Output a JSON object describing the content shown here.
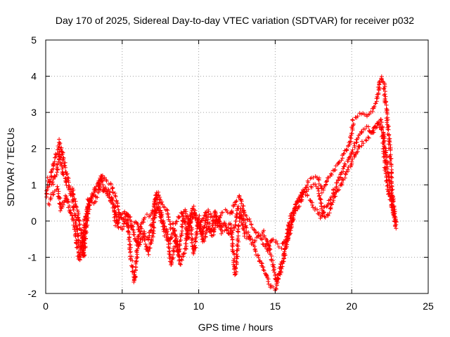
{
  "chart_data": {
    "type": "scatter",
    "title": "Day 170 of 2025, Sidereal Day-to-day VTEC variation (SDTVAR) for receiver p032",
    "xlabel": "GPS time / hours",
    "ylabel": "SDTVAR / TECUs",
    "xlim": [
      0,
      25
    ],
    "ylim": [
      -2,
      5
    ],
    "xticks": [
      0,
      5,
      10,
      15,
      20,
      25
    ],
    "yticks": [
      -2,
      -1,
      0,
      1,
      2,
      3,
      4,
      5
    ],
    "grid": true,
    "marker": "+",
    "series": [
      {
        "name": "SDTVAR",
        "color": "#ff0000",
        "tracks": [
          [
            [
              0.0,
              0.7
            ],
            [
              0.3,
              1.2
            ],
            [
              0.6,
              1.7
            ],
            [
              0.9,
              2.2
            ],
            [
              1.2,
              1.6
            ],
            [
              1.5,
              1.0
            ],
            [
              1.8,
              0.5
            ],
            [
              2.0,
              -0.1
            ],
            [
              2.2,
              -0.6
            ],
            [
              2.4,
              -0.9
            ],
            [
              2.6,
              -0.2
            ],
            [
              2.8,
              0.6
            ],
            [
              3.1,
              0.5
            ],
            [
              3.4,
              0.7
            ],
            [
              3.7,
              1.3
            ],
            [
              4.0,
              1.1
            ],
            [
              4.3,
              1.0
            ],
            [
              4.6,
              0.6
            ],
            [
              4.8,
              0.2
            ],
            [
              5.0,
              0.1
            ],
            [
              5.3,
              -0.1
            ],
            [
              5.6,
              -0.2
            ],
            [
              5.9,
              0.0
            ],
            [
              6.2,
              -0.2
            ],
            [
              6.5,
              0.1
            ],
            [
              6.8,
              0.2
            ],
            [
              7.0,
              0.3
            ],
            [
              7.3,
              0.8
            ],
            [
              7.6,
              0.5
            ],
            [
              7.9,
              0.3
            ],
            [
              8.2,
              -0.2
            ],
            [
              8.5,
              0.0
            ],
            [
              8.8,
              0.2
            ],
            [
              9.1,
              0.3
            ],
            [
              9.4,
              -0.1
            ],
            [
              9.7,
              0.2
            ],
            [
              10.0,
              -0.2
            ],
            [
              10.3,
              0.1
            ],
            [
              10.6,
              0.3
            ],
            [
              10.9,
              0.1
            ],
            [
              11.2,
              -0.1
            ],
            [
              11.5,
              0.2
            ],
            [
              11.8,
              0.3
            ],
            [
              12.1,
              0.2
            ],
            [
              12.4,
              0.5
            ],
            [
              12.7,
              0.7
            ],
            [
              13.0,
              0.2
            ],
            [
              13.3,
              0.0
            ],
            [
              13.6,
              -0.2
            ],
            [
              13.9,
              -0.4
            ],
            [
              14.2,
              -0.6
            ],
            [
              14.5,
              -0.8
            ],
            [
              14.8,
              -0.5
            ],
            [
              15.1,
              -0.6
            ],
            [
              15.4,
              -0.7
            ],
            [
              15.7,
              -0.5
            ],
            [
              16.0,
              0.1
            ],
            [
              16.3,
              0.4
            ],
            [
              16.6,
              0.6
            ],
            [
              16.9,
              0.9
            ],
            [
              17.2,
              1.1
            ],
            [
              17.5,
              1.2
            ],
            [
              17.8,
              1.2
            ],
            [
              18.1,
              0.8
            ],
            [
              18.4,
              1.1
            ],
            [
              18.7,
              1.3
            ],
            [
              19.0,
              1.5
            ],
            [
              19.3,
              1.7
            ],
            [
              19.6,
              1.9
            ],
            [
              19.9,
              2.2
            ],
            [
              20.1,
              2.8
            ],
            [
              20.4,
              2.9
            ],
            [
              20.7,
              3.0
            ],
            [
              21.0,
              2.9
            ],
            [
              21.3,
              3.0
            ],
            [
              21.6,
              3.3
            ],
            [
              21.9,
              4.0
            ],
            [
              22.1,
              3.8
            ],
            [
              22.3,
              2.9
            ],
            [
              22.5,
              1.9
            ],
            [
              22.7,
              0.6
            ],
            [
              22.9,
              -0.2
            ]
          ],
          [
            [
              0.1,
              1.2
            ],
            [
              0.4,
              1.0
            ],
            [
              0.7,
              1.3
            ],
            [
              0.9,
              1.9
            ],
            [
              1.1,
              1.4
            ],
            [
              1.4,
              1.0
            ],
            [
              1.7,
              0.9
            ],
            [
              1.9,
              0.6
            ],
            [
              2.1,
              0.2
            ],
            [
              2.3,
              -0.3
            ],
            [
              2.5,
              -1.0
            ],
            [
              2.7,
              0.1
            ],
            [
              3.0,
              0.7
            ],
            [
              3.3,
              0.9
            ],
            [
              3.6,
              1.2
            ],
            [
              3.9,
              0.9
            ],
            [
              4.2,
              0.6
            ],
            [
              4.5,
              0.4
            ],
            [
              4.7,
              -0.1
            ],
            [
              5.0,
              -0.2
            ],
            [
              5.3,
              0.2
            ],
            [
              5.6,
              -1.1
            ],
            [
              5.8,
              -1.7
            ],
            [
              6.1,
              -0.2
            ],
            [
              6.4,
              -0.4
            ],
            [
              6.7,
              -0.9
            ],
            [
              7.0,
              -0.4
            ],
            [
              7.2,
              0.7
            ],
            [
              7.5,
              0.3
            ],
            [
              7.8,
              -0.4
            ],
            [
              8.1,
              -0.6
            ],
            [
              8.4,
              -0.2
            ],
            [
              8.7,
              -0.9
            ],
            [
              9.0,
              0.2
            ],
            [
              9.3,
              -0.5
            ],
            [
              9.6,
              0.4
            ],
            [
              9.9,
              0.0
            ],
            [
              10.2,
              -0.4
            ],
            [
              10.5,
              0.2
            ],
            [
              10.8,
              -0.3
            ],
            [
              11.1,
              0.3
            ],
            [
              11.4,
              -0.2
            ],
            [
              11.7,
              0.0
            ],
            [
              12.0,
              -0.4
            ],
            [
              12.3,
              -0.2
            ],
            [
              12.6,
              0.4
            ],
            [
              12.9,
              0.1
            ],
            [
              13.2,
              -0.3
            ],
            [
              13.5,
              -0.6
            ],
            [
              13.8,
              -0.9
            ],
            [
              14.1,
              -1.2
            ],
            [
              14.4,
              -1.5
            ],
            [
              14.7,
              -1.8
            ],
            [
              15.0,
              -1.9
            ],
            [
              15.3,
              -1.4
            ],
            [
              15.6,
              -0.9
            ],
            [
              15.9,
              -0.3
            ],
            [
              16.2,
              0.2
            ],
            [
              16.5,
              0.6
            ],
            [
              16.8,
              0.8
            ],
            [
              17.1,
              0.7
            ],
            [
              17.4,
              0.5
            ],
            [
              17.7,
              0.3
            ],
            [
              18.0,
              0.1
            ],
            [
              18.3,
              0.4
            ],
            [
              18.6,
              0.6
            ],
            [
              18.9,
              0.9
            ],
            [
              19.2,
              1.2
            ],
            [
              19.5,
              1.5
            ],
            [
              19.8,
              1.7
            ],
            [
              20.1,
              2.0
            ],
            [
              20.4,
              2.3
            ],
            [
              20.7,
              2.5
            ],
            [
              21.0,
              2.6
            ],
            [
              21.3,
              2.4
            ],
            [
              21.6,
              2.6
            ],
            [
              21.9,
              2.8
            ],
            [
              22.1,
              2.3
            ],
            [
              22.3,
              1.6
            ],
            [
              22.5,
              1.0
            ],
            [
              22.7,
              0.4
            ],
            [
              22.9,
              -0.1
            ]
          ],
          [
            [
              0.2,
              0.5
            ],
            [
              0.5,
              0.8
            ],
            [
              0.8,
              0.9
            ],
            [
              1.0,
              0.3
            ],
            [
              1.3,
              0.7
            ],
            [
              1.6,
              0.3
            ],
            [
              1.8,
              0.0
            ],
            [
              2.0,
              -0.5
            ],
            [
              2.2,
              -1.1
            ],
            [
              2.4,
              -0.6
            ],
            [
              2.6,
              0.2
            ],
            [
              2.9,
              0.6
            ],
            [
              3.2,
              0.8
            ],
            [
              3.5,
              1.0
            ],
            [
              3.8,
              0.8
            ],
            [
              4.1,
              0.9
            ],
            [
              4.4,
              0.5
            ],
            [
              4.6,
              -0.1
            ],
            [
              4.9,
              0.2
            ],
            [
              5.2,
              0.3
            ],
            [
              5.5,
              0.1
            ],
            [
              5.8,
              -0.4
            ],
            [
              6.1,
              -0.7
            ],
            [
              6.4,
              -0.3
            ],
            [
              6.7,
              -0.5
            ],
            [
              7.0,
              0.0
            ],
            [
              7.3,
              0.4
            ],
            [
              7.6,
              0.0
            ],
            [
              7.9,
              -0.3
            ],
            [
              8.2,
              -1.2
            ],
            [
              8.5,
              -0.5
            ],
            [
              8.8,
              -1.2
            ],
            [
              9.1,
              -0.8
            ],
            [
              9.4,
              0.1
            ],
            [
              9.7,
              -0.9
            ],
            [
              10.0,
              0.1
            ],
            [
              10.3,
              -0.6
            ],
            [
              10.6,
              -0.1
            ],
            [
              10.9,
              -0.4
            ],
            [
              11.2,
              0.1
            ],
            [
              11.5,
              -0.3
            ],
            [
              11.8,
              -0.2
            ],
            [
              12.1,
              -0.1
            ],
            [
              12.4,
              -1.5
            ],
            [
              12.7,
              0.2
            ],
            [
              13.0,
              -0.4
            ],
            [
              13.3,
              -0.5
            ],
            [
              13.6,
              -0.6
            ],
            [
              13.9,
              -0.4
            ],
            [
              14.2,
              -0.3
            ],
            [
              14.5,
              -0.6
            ],
            [
              14.8,
              -1.1
            ],
            [
              15.1,
              -1.7
            ],
            [
              15.4,
              -1.3
            ],
            [
              15.7,
              -0.7
            ],
            [
              16.0,
              -0.2
            ],
            [
              16.3,
              0.3
            ],
            [
              16.6,
              0.5
            ],
            [
              16.9,
              0.8
            ],
            [
              17.2,
              0.9
            ],
            [
              17.5,
              1.0
            ],
            [
              17.8,
              0.9
            ],
            [
              18.1,
              0.2
            ],
            [
              18.4,
              0.1
            ],
            [
              18.7,
              0.5
            ],
            [
              19.0,
              0.8
            ],
            [
              19.3,
              1.0
            ],
            [
              19.6,
              1.3
            ],
            [
              19.9,
              1.5
            ],
            [
              20.2,
              1.8
            ],
            [
              20.5,
              2.1
            ],
            [
              20.8,
              2.2
            ],
            [
              21.1,
              2.3
            ],
            [
              21.4,
              2.5
            ],
            [
              21.7,
              2.7
            ],
            [
              22.0,
              2.5
            ],
            [
              22.2,
              1.4
            ],
            [
              22.4,
              0.8
            ],
            [
              22.6,
              0.5
            ],
            [
              22.8,
              0.0
            ]
          ]
        ]
      }
    ]
  }
}
